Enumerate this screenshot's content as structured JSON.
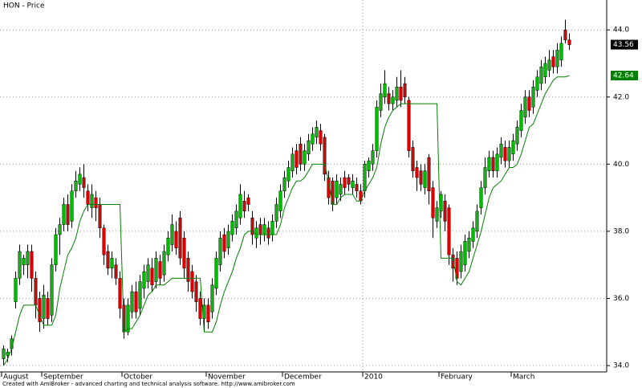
{
  "chart_data": {
    "type": "candlestick",
    "title": "HON - Price",
    "categories": [
      "August",
      null,
      null,
      null,
      null,
      null,
      null,
      null,
      null,
      null,
      "September",
      null,
      null,
      null,
      null,
      null,
      null,
      null,
      null,
      null,
      null,
      null,
      null,
      null,
      null,
      null,
      null,
      null,
      null,
      null,
      "October",
      null,
      null,
      null,
      null,
      null,
      null,
      null,
      null,
      null,
      null,
      null,
      null,
      null,
      null,
      null,
      null,
      null,
      null,
      null,
      null,
      "November",
      null,
      null,
      null,
      null,
      null,
      null,
      null,
      null,
      null,
      null,
      null,
      null,
      null,
      null,
      null,
      null,
      null,
      null,
      "December",
      null,
      null,
      null,
      null,
      null,
      null,
      null,
      null,
      null,
      null,
      null,
      null,
      null,
      null,
      null,
      null,
      null,
      null,
      null,
      "2010",
      null,
      null,
      null,
      null,
      null,
      null,
      null,
      null,
      null,
      null,
      null,
      null,
      null,
      null,
      null,
      null,
      null,
      null,
      "February",
      null,
      null,
      null,
      null,
      null,
      null,
      null,
      null,
      null,
      null,
      null,
      null,
      null,
      null,
      null,
      null,
      null,
      "March",
      null,
      null,
      null,
      null,
      null,
      null,
      null,
      null,
      null,
      null,
      null,
      null,
      null,
      null
    ],
    "open": [
      34.2,
      34.3,
      34.5,
      35.9,
      36.6,
      37.0,
      37.0,
      37.4,
      36.6,
      36.0,
      35.4,
      36.0,
      35.5,
      37.0,
      37.9,
      38.2,
      38.8,
      38.3,
      39.2,
      39.4,
      39.6,
      39.2,
      38.7,
      39.0,
      38.8,
      38.1,
      37.4,
      36.9,
      37.0,
      36.6,
      35.8,
      35.0,
      35.6,
      36.2,
      35.7,
      36.3,
      36.5,
      36.9,
      36.5,
      37.1,
      36.7,
      37.3,
      37.6,
      38.0,
      38.4,
      37.8,
      37.2,
      36.8,
      36.5,
      36.0,
      35.4,
      35.8,
      35.6,
      36.3,
      37.0,
      37.9,
      37.5,
      37.9,
      38.1,
      38.4,
      38.9,
      39.0,
      38.4,
      37.8,
      38.2,
      37.9,
      38.1,
      37.9,
      38.3,
      38.6,
      39.2,
      39.5,
      39.8,
      40.4,
      40.6,
      40.0,
      40.3,
      40.6,
      40.8,
      41.0,
      40.8,
      39.6,
      39.5,
      39.0,
      39.1,
      39.6,
      39.6,
      39.3,
      39.4,
      39.2,
      39.2,
      39.8,
      40.0,
      40.4,
      41.6,
      42.0,
      42.1,
      41.8,
      41.9,
      42.3,
      42.4,
      41.9,
      40.5,
      39.9,
      39.8,
      39.3,
      40.2,
      39.3,
      38.3,
      38.6,
      38.9,
      38.7,
      37.3,
      37.2,
      36.8,
      37.0,
      37.4,
      37.7,
      38.0,
      38.7,
      39.3,
      39.8,
      40.2,
      39.8,
      40.2,
      40.5,
      40.1,
      40.3,
      40.6,
      41.0,
      41.4,
      42.0,
      41.7,
      42.2,
      42.4,
      42.6,
      42.8,
      43.2,
      42.9,
      43.1,
      44.0,
      43.7
    ],
    "high": [
      34.6,
      34.5,
      34.9,
      36.8,
      37.6,
      37.3,
      37.6,
      37.6,
      36.8,
      36.2,
      36.4,
      36.2,
      37.2,
      38.1,
      38.4,
      39.0,
      39.1,
      39.4,
      39.8,
      39.9,
      40.0,
      39.4,
      39.4,
      39.2,
      39.0,
      38.2,
      37.6,
      37.4,
      37.2,
      36.8,
      36.0,
      36.0,
      36.4,
      36.5,
      36.7,
      37.0,
      37.2,
      37.2,
      37.4,
      37.3,
      37.6,
      38.0,
      38.5,
      38.3,
      38.6,
      38.0,
      37.4,
      37.0,
      36.7,
      36.2,
      36.0,
      36.0,
      36.6,
      37.4,
      38.0,
      38.1,
      38.2,
      38.5,
      38.8,
      39.4,
      39.2,
      39.1,
      38.6,
      38.3,
      38.4,
      38.4,
      38.3,
      38.5,
      39.0,
      39.4,
      39.8,
      40.1,
      40.5,
      40.6,
      40.8,
      40.6,
      40.9,
      41.1,
      41.3,
      41.2,
      40.9,
      39.8,
      39.6,
      39.7,
      39.6,
      39.8,
      39.7,
      39.7,
      39.6,
      39.4,
      40.1,
      40.2,
      40.6,
      41.9,
      42.4,
      42.8,
      42.3,
      42.2,
      42.6,
      42.8,
      42.6,
      42.0,
      40.7,
      40.1,
      40.0,
      40.0,
      40.3,
      39.5,
      38.9,
      39.2,
      39.1,
      38.8,
      37.5,
      37.4,
      37.6,
      37.9,
      38.0,
      38.3,
      38.8,
      39.5,
      40.2,
      40.4,
      40.4,
      40.5,
      40.8,
      40.7,
      40.7,
      40.9,
      41.3,
      41.8,
      42.2,
      42.2,
      42.5,
      42.8,
      43.1,
      43.2,
      43.4,
      43.4,
      43.6,
      43.8,
      44.3,
      43.9
    ],
    "low": [
      34.0,
      34.1,
      34.3,
      35.7,
      36.4,
      36.7,
      36.6,
      36.2,
      35.4,
      35.0,
      35.1,
      35.2,
      35.3,
      36.8,
      37.3,
      38.0,
      38.0,
      38.1,
      39.0,
      39.2,
      39.0,
      38.6,
      38.4,
      38.3,
      37.8,
      37.0,
      36.7,
      36.6,
      36.4,
      35.4,
      34.8,
      34.9,
      35.4,
      35.4,
      35.5,
      36.0,
      36.3,
      36.2,
      36.3,
      36.4,
      36.5,
      37.1,
      37.4,
      37.3,
      37.0,
      36.6,
      36.2,
      36.0,
      35.6,
      35.2,
      35.0,
      35.1,
      35.4,
      36.1,
      36.8,
      37.2,
      37.3,
      37.7,
      37.9,
      38.2,
      38.4,
      38.6,
      37.6,
      37.5,
      37.6,
      37.7,
      37.6,
      37.7,
      38.1,
      38.4,
      39.0,
      39.3,
      39.6,
      39.7,
      39.8,
      39.8,
      40.1,
      40.4,
      40.6,
      40.4,
      39.5,
      38.8,
      38.6,
      38.8,
      38.9,
      39.1,
      39.2,
      39.1,
      39.0,
      38.8,
      39.0,
      39.6,
      39.8,
      40.2,
      41.4,
      41.8,
      41.6,
      41.6,
      41.7,
      41.7,
      41.8,
      40.2,
      39.6,
      39.2,
      39.2,
      39.1,
      38.8,
      37.8,
      38.1,
      38.4,
      38.0,
      37.0,
      36.5,
      36.4,
      36.6,
      36.8,
      37.2,
      37.5,
      37.8,
      38.5,
      39.1,
      39.6,
      39.6,
      39.6,
      40.0,
      39.9,
      39.9,
      40.1,
      40.4,
      40.8,
      41.2,
      41.4,
      41.5,
      42.0,
      42.2,
      42.4,
      42.6,
      42.7,
      42.7,
      42.9,
      43.6,
      43.4
    ],
    "close": [
      34.5,
      34.4,
      34.8,
      36.6,
      37.4,
      37.2,
      37.4,
      36.6,
      35.8,
      35.3,
      36.1,
      35.4,
      37.0,
      37.9,
      38.2,
      38.8,
      38.2,
      39.2,
      39.5,
      39.7,
      39.3,
      38.8,
      39.1,
      38.7,
      38.1,
      37.3,
      36.9,
      37.2,
      36.6,
      35.7,
      35.0,
      35.8,
      36.2,
      35.6,
      36.5,
      36.8,
      37.0,
      36.4,
      37.2,
      36.6,
      37.4,
      37.8,
      38.2,
      37.5,
      37.2,
      36.9,
      36.5,
      36.2,
      35.9,
      35.4,
      35.8,
      35.3,
      36.4,
      37.2,
      37.8,
      37.4,
      38.0,
      38.3,
      38.6,
      39.1,
      38.6,
      38.8,
      37.9,
      38.1,
      37.9,
      38.2,
      37.8,
      38.3,
      38.8,
      39.2,
      39.6,
      39.9,
      40.3,
      39.9,
      40.0,
      40.4,
      40.7,
      40.9,
      41.1,
      40.6,
      39.7,
      39.0,
      38.8,
      39.5,
      39.4,
      39.3,
      39.4,
      39.5,
      39.2,
      38.9,
      40.0,
      40.1,
      40.4,
      41.7,
      42.1,
      42.4,
      41.8,
      42.0,
      42.3,
      41.9,
      42.0,
      40.4,
      39.8,
      39.6,
      39.4,
      39.8,
      39.2,
      38.4,
      38.7,
      39.1,
      38.3,
      37.3,
      36.9,
      36.6,
      37.4,
      37.7,
      37.8,
      38.1,
      38.6,
      39.3,
      39.9,
      40.2,
      39.8,
      40.3,
      40.6,
      40.1,
      40.5,
      40.7,
      41.1,
      41.6,
      42.0,
      41.6,
      42.3,
      42.6,
      42.9,
      43.0,
      43.1,
      42.9,
      43.4,
      43.6,
      43.7,
      43.56
    ],
    "up_color": "#00c000",
    "down_color": "#e00000",
    "stop": {
      "color": "#008000",
      "values": [
        34.0,
        34.2,
        34.5,
        35.0,
        35.5,
        35.8,
        35.8,
        35.8,
        35.8,
        35.5,
        35.2,
        35.2,
        35.2,
        35.5,
        36.3,
        36.8,
        37.3,
        37.5,
        37.8,
        38.3,
        38.6,
        38.8,
        38.8,
        38.8,
        38.8,
        38.8,
        38.8,
        38.8,
        38.8,
        38.8,
        35.0,
        35.1,
        35.1,
        35.3,
        35.5,
        35.8,
        36.1,
        36.2,
        36.4,
        36.4,
        36.4,
        36.5,
        36.6,
        36.6,
        36.6,
        36.6,
        36.6,
        36.6,
        36.6,
        36.6,
        35.0,
        35.0,
        35.0,
        35.3,
        35.8,
        36.2,
        36.5,
        36.8,
        37.2,
        37.5,
        37.9,
        38.0,
        38.0,
        37.9,
        37.9,
        37.9,
        37.9,
        37.9,
        37.9,
        38.2,
        38.7,
        39.0,
        39.3,
        39.5,
        39.5,
        39.6,
        39.8,
        40.0,
        40.0,
        40.0,
        40.0,
        39.5,
        38.8,
        38.8,
        39.0,
        39.1,
        39.1,
        39.1,
        38.9,
        38.9,
        39.2,
        39.4,
        39.6,
        39.9,
        40.6,
        41.1,
        41.4,
        41.6,
        41.7,
        41.8,
        41.8,
        41.8,
        41.8,
        41.8,
        41.8,
        41.8,
        41.8,
        41.8,
        41.8,
        37.2,
        37.2,
        37.2,
        37.2,
        36.5,
        36.4,
        36.6,
        36.8,
        37.2,
        37.6,
        38.0,
        38.5,
        39.0,
        39.3,
        39.4,
        39.5,
        39.7,
        39.9,
        39.9,
        40.0,
        40.3,
        40.7,
        41.1,
        41.2,
        41.5,
        41.8,
        42.1,
        42.3,
        42.5,
        42.6,
        42.6,
        42.6,
        42.64
      ]
    },
    "ylim": [
      33.81,
      44.89
    ],
    "yticks": [
      {
        "value": 34,
        "label": "34.0"
      },
      {
        "value": 36,
        "label": "36.0"
      },
      {
        "value": 38,
        "label": "38.0"
      },
      {
        "value": 40,
        "label": "40.0"
      },
      {
        "value": 42,
        "label": "42.0"
      },
      {
        "value": 44,
        "label": "44.0"
      }
    ],
    "grid": true
  },
  "footer": "Created with AmiBroker - advanced charting and technical analysis software. http://www.amibroker.com"
}
